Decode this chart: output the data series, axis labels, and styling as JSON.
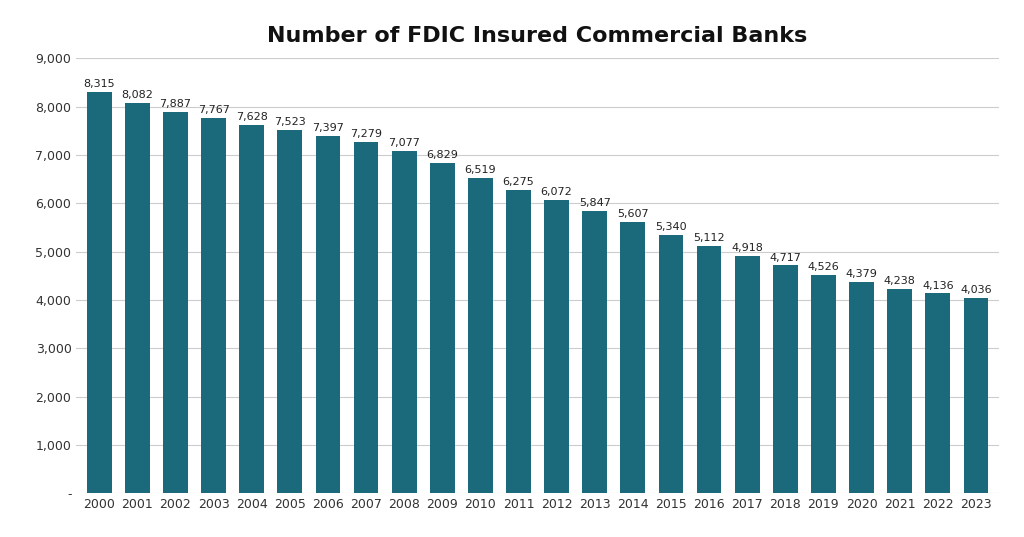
{
  "title": "Number of FDIC Insured Commercial Banks",
  "years": [
    2000,
    2001,
    2002,
    2003,
    2004,
    2005,
    2006,
    2007,
    2008,
    2009,
    2010,
    2011,
    2012,
    2013,
    2014,
    2015,
    2016,
    2017,
    2018,
    2019,
    2020,
    2021,
    2022,
    2023
  ],
  "values": [
    8315,
    8082,
    7887,
    7767,
    7628,
    7523,
    7397,
    7279,
    7077,
    6829,
    6519,
    6275,
    6072,
    5847,
    5607,
    5340,
    5112,
    4918,
    4717,
    4526,
    4379,
    4238,
    4136,
    4036
  ],
  "bar_color": "#1B6A7B",
  "background_color": "#FFFFFF",
  "title_fontsize": 16,
  "label_fontsize": 8,
  "tick_fontsize": 9,
  "ylim": [
    0,
    9000
  ],
  "yticks": [
    0,
    1000,
    2000,
    3000,
    4000,
    5000,
    6000,
    7000,
    8000,
    9000
  ],
  "ytick_labels": [
    "-",
    "1,000",
    "2,000",
    "3,000",
    "4,000",
    "5,000",
    "6,000",
    "7,000",
    "8,000",
    "9,000"
  ]
}
